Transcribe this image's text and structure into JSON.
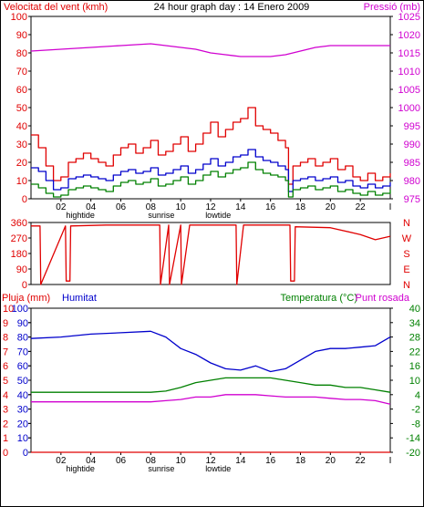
{
  "colors": {
    "wind": "#e00000",
    "wind_avg": "#0000cc",
    "wind_min": "#008000",
    "pressure": "#d000d0",
    "direction": "#e00000",
    "rain": "#e00000",
    "humidity": "#0000cc",
    "temperature": "#008000",
    "dewpoint": "#d000d0",
    "axis": "#000000",
    "frame": "#000000"
  },
  "header": {
    "left": "Velocitat del vent (kmh)",
    "center": "24 hour graph day : 14 Enero 2009",
    "right": "Pressió (mb)"
  },
  "header3": {
    "rain": "Pluja (mm)",
    "humidity": "Humitat",
    "temperature": "Temperatura (°C)",
    "dewpoint": "Punt rosada"
  },
  "x_axis": {
    "hours": [
      "02",
      "04",
      "06",
      "08",
      "10",
      "12",
      "14",
      "16",
      "18",
      "20",
      "22"
    ],
    "end_tick": "I",
    "events": [
      "hightide",
      "sunrise",
      "lowtide"
    ]
  },
  "chart_data": [
    {
      "type": "line",
      "panel": "wind",
      "x_unit": "hour",
      "xlim": [
        0,
        24
      ],
      "left_axis": {
        "ylim": [
          0,
          100
        ],
        "ticks": [
          "100",
          "90",
          "80",
          "70",
          "60",
          "50",
          "40",
          "30",
          "20",
          "10",
          "0"
        ]
      },
      "right_axis": {
        "ylim": [
          975,
          1025
        ],
        "ticks": [
          "1025",
          "1020",
          "1015",
          "1010",
          "1005",
          "1000",
          "995",
          "990",
          "985",
          "980",
          "975"
        ]
      },
      "series": [
        {
          "axis": "left",
          "color_key": "wind",
          "x": [
            0,
            0.5,
            1,
            1.5,
            2,
            2.5,
            3,
            3.5,
            4,
            4.5,
            5,
            5.5,
            6,
            6.5,
            7,
            7.5,
            8,
            8.5,
            9,
            9.5,
            10,
            10.5,
            11,
            11.5,
            12,
            12.5,
            13,
            13.5,
            14,
            14.5,
            15,
            15.5,
            16,
            16.5,
            17,
            17.2,
            17.5,
            18,
            18.5,
            19,
            19.5,
            20,
            20.5,
            21,
            21.5,
            22,
            22.5,
            23,
            23.5,
            24
          ],
          "values": [
            35,
            28,
            18,
            10,
            12,
            20,
            22,
            25,
            22,
            20,
            18,
            24,
            28,
            30,
            25,
            28,
            32,
            24,
            26,
            30,
            34,
            26,
            30,
            36,
            42,
            34,
            38,
            42,
            44,
            50,
            40,
            38,
            36,
            32,
            28,
            8,
            18,
            20,
            22,
            18,
            20,
            22,
            16,
            18,
            12,
            10,
            14,
            10,
            12,
            14
          ]
        },
        {
          "axis": "left",
          "color_key": "wind_avg",
          "x": [
            0,
            0.5,
            1,
            1.5,
            2,
            2.5,
            3,
            3.5,
            4,
            4.5,
            5,
            5.5,
            6,
            6.5,
            7,
            7.5,
            8,
            8.5,
            9,
            9.5,
            10,
            10.5,
            11,
            11.5,
            12,
            12.5,
            13,
            13.5,
            14,
            14.5,
            15,
            15.5,
            16,
            16.5,
            17,
            17.2,
            17.5,
            18,
            18.5,
            19,
            19.5,
            20,
            20.5,
            21,
            21.5,
            22,
            22.5,
            23,
            23.5,
            24
          ],
          "values": [
            17,
            15,
            10,
            5,
            6,
            11,
            12,
            13,
            12,
            11,
            10,
            13,
            15,
            16,
            14,
            15,
            17,
            13,
            14,
            16,
            18,
            14,
            16,
            19,
            22,
            18,
            20,
            23,
            24,
            27,
            23,
            21,
            20,
            18,
            16,
            4,
            10,
            11,
            12,
            10,
            11,
            12,
            9,
            10,
            7,
            6,
            8,
            6,
            7,
            9
          ]
        },
        {
          "axis": "left",
          "color_key": "wind_min",
          "x": [
            0,
            0.5,
            1,
            1.5,
            2,
            2.5,
            3,
            3.5,
            4,
            4.5,
            5,
            5.5,
            6,
            6.5,
            7,
            7.5,
            8,
            8.5,
            9,
            9.5,
            10,
            10.5,
            11,
            11.5,
            12,
            12.5,
            13,
            13.5,
            14,
            14.5,
            15,
            15.5,
            16,
            16.5,
            17,
            17.2,
            17.5,
            18,
            18.5,
            19,
            19.5,
            20,
            20.5,
            21,
            21.5,
            22,
            22.5,
            23,
            23.5,
            24
          ],
          "values": [
            8,
            6,
            3,
            1,
            2,
            5,
            6,
            7,
            6,
            5,
            4,
            7,
            9,
            10,
            8,
            9,
            11,
            7,
            8,
            10,
            12,
            8,
            10,
            13,
            15,
            12,
            14,
            16,
            17,
            20,
            16,
            14,
            13,
            12,
            10,
            1,
            5,
            6,
            7,
            5,
            6,
            7,
            4,
            5,
            3,
            2,
            4,
            2,
            3,
            5
          ]
        },
        {
          "axis": "right",
          "color_key": "pressure",
          "x": [
            0,
            2,
            4,
            6,
            8,
            9,
            10,
            11,
            12,
            13,
            14,
            15,
            16,
            17,
            18,
            19,
            20,
            21,
            22,
            23,
            24
          ],
          "values": [
            1015.5,
            1016,
            1016.5,
            1017,
            1017.5,
            1017,
            1016.5,
            1016,
            1015,
            1014.5,
            1014,
            1014,
            1014,
            1014.5,
            1015.5,
            1016.5,
            1017,
            1017,
            1017,
            1017,
            1017
          ]
        }
      ]
    },
    {
      "type": "line",
      "panel": "wind_direction",
      "x_unit": "hour",
      "xlim": [
        0,
        24
      ],
      "left_axis": {
        "ylim": [
          0,
          360
        ],
        "ticks": [
          "360",
          "270",
          "180",
          "90",
          "0"
        ]
      },
      "right_axis_labels": [
        "N",
        "W",
        "S",
        "E",
        "N"
      ],
      "series": [
        {
          "color_key": "direction",
          "x": [
            0,
            0.6,
            0.65,
            2.3,
            2.35,
            2.6,
            2.65,
            5,
            8.6,
            8.65,
            9.2,
            9.25,
            10,
            10.05,
            10.6,
            10.65,
            13.7,
            13.75,
            14.2,
            14.25,
            17.3,
            17.35,
            17.6,
            17.65,
            20,
            22,
            23,
            24
          ],
          "values": [
            340,
            340,
            0,
            340,
            20,
            20,
            340,
            345,
            345,
            0,
            345,
            0,
            345,
            0,
            345,
            345,
            345,
            0,
            345,
            345,
            345,
            20,
            20,
            335,
            330,
            290,
            260,
            280
          ]
        }
      ]
    },
    {
      "type": "line",
      "panel": "rain_humidity_temperature",
      "x_unit": "hour",
      "xlim": [
        0,
        24
      ],
      "left_axis": {
        "label_key": "rain",
        "ylim": [
          0,
          10
        ],
        "ticks": [
          "10",
          "9",
          "8",
          "7",
          "6",
          "5",
          "4",
          "3",
          "2",
          "1",
          "0"
        ]
      },
      "left_axis_2": {
        "label_key": "humidity",
        "ylim": [
          0,
          100
        ],
        "ticks": [
          "100",
          "90",
          "80",
          "70",
          "60",
          "50",
          "40",
          "30",
          "20",
          "10",
          "0"
        ]
      },
      "right_axis": {
        "label_key": "temperature",
        "ylim": [
          -20,
          40
        ],
        "ticks": [
          "40",
          "34",
          "28",
          "22",
          "16",
          "10",
          "4",
          "-2",
          "-8",
          "-14",
          "-20"
        ]
      },
      "series": [
        {
          "name": "Pluja (mm)",
          "axis": "left",
          "color_key": "rain",
          "x": [
            0,
            24
          ],
          "values": [
            0,
            0
          ]
        },
        {
          "name": "Humitat",
          "axis": "left_2",
          "color_key": "humidity",
          "x": [
            0,
            2,
            4,
            6,
            8,
            9,
            10,
            11,
            12,
            13,
            14,
            15,
            16,
            17,
            18,
            19,
            20,
            21,
            22,
            23,
            24
          ],
          "values": [
            79,
            80,
            82,
            83,
            84,
            80,
            72,
            68,
            62,
            58,
            57,
            60,
            56,
            58,
            64,
            70,
            72,
            72,
            73,
            74,
            80
          ]
        },
        {
          "name": "Temperatura (°C)",
          "axis": "right",
          "color_key": "temperature",
          "x": [
            0,
            2,
            4,
            6,
            8,
            9,
            10,
            11,
            12,
            13,
            14,
            15,
            16,
            17,
            18,
            19,
            20,
            21,
            22,
            23,
            24
          ],
          "values": [
            5,
            5,
            5,
            5,
            5,
            5.5,
            7,
            9,
            10,
            11,
            11,
            11,
            11,
            10,
            9,
            8,
            8,
            7,
            7,
            6,
            5
          ]
        },
        {
          "name": "Punt rosada",
          "axis": "right",
          "color_key": "dewpoint",
          "x": [
            0,
            2,
            4,
            6,
            8,
            9,
            10,
            11,
            12,
            13,
            14,
            15,
            16,
            17,
            18,
            19,
            20,
            21,
            22,
            23,
            24
          ],
          "values": [
            1,
            1,
            1,
            1,
            1,
            1.5,
            2,
            3,
            3,
            4,
            4,
            4,
            3.5,
            3,
            3,
            3,
            2.5,
            2,
            2,
            1.5,
            0
          ]
        }
      ]
    }
  ]
}
